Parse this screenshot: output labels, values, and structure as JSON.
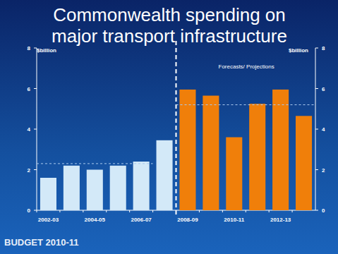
{
  "chart_data": {
    "type": "bar",
    "title": "Commonwealth spending on major transport infrastructure",
    "y_label": "$billion",
    "categories": [
      "2002-03",
      null,
      "2004-05",
      null,
      "2006-07",
      null,
      "2008-09",
      null,
      "2010-11",
      null,
      "2012-13",
      null
    ],
    "values": [
      1.6,
      2.2,
      2.0,
      2.2,
      2.4,
      3.45,
      5.95,
      5.65,
      3.6,
      5.25,
      5.95,
      4.65
    ],
    "colors": [
      "#d3e9f8",
      "#d3e9f8",
      "#d3e9f8",
      "#d3e9f8",
      "#d3e9f8",
      "#d3e9f8",
      "#f07f0a",
      "#f07f0a",
      "#f07f0a",
      "#f07f0a",
      "#f07f0a",
      "#f07f0a"
    ],
    "ylim": [
      0,
      8
    ],
    "yticks": [
      0,
      2,
      4,
      6,
      8
    ],
    "grid": false,
    "reference_lines": [
      {
        "value": 2.3,
        "first": 0,
        "last": 4
      },
      {
        "value": 5.2,
        "first": 6,
        "last": 11
      }
    ],
    "annotations": [
      {
        "text": "Forecasts/ Projections",
        "from_index": 6
      }
    ]
  },
  "footer_logo": "BUDGET 2010-11"
}
